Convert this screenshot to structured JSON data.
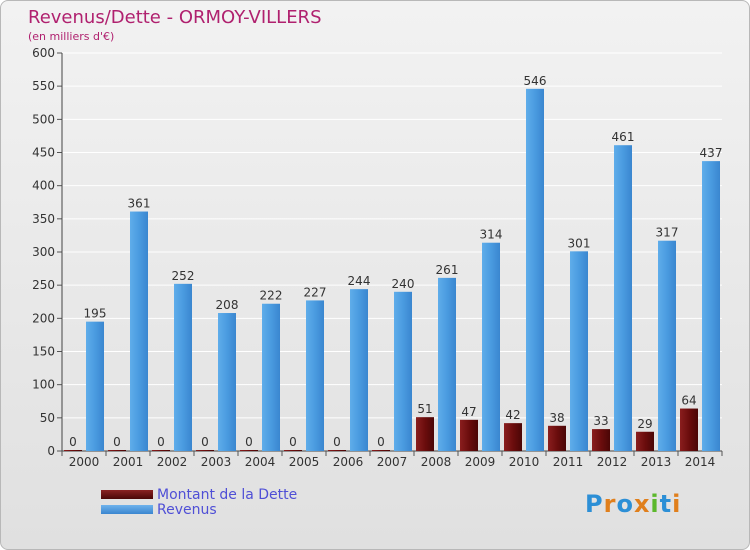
{
  "header": {
    "title": "Revenus/Dette - ORMOY-VILLERS",
    "subtitle": "(en milliers d'€)"
  },
  "legend": {
    "items": [
      {
        "label": "Montant de la Dette",
        "color": "#6b0d0d"
      },
      {
        "label": "Revenus",
        "color": "#4a9be0"
      }
    ]
  },
  "logo": {
    "text": "Proxiti",
    "colors": [
      "#2c8fd6",
      "#e07f1c",
      "#2c8fd6",
      "#e07f1c",
      "#5cb82c",
      "#2c8fd6",
      "#e07f1c"
    ]
  },
  "chart_data": {
    "type": "bar",
    "title": "Revenus/Dette - ORMOY-VILLERS",
    "subtitle": "(en milliers d'€)",
    "xlabel": "",
    "ylabel": "",
    "ylim": [
      0,
      600
    ],
    "yticks": [
      0,
      50,
      100,
      150,
      200,
      250,
      300,
      350,
      400,
      450,
      500,
      550,
      600
    ],
    "grid": true,
    "legend_position": "bottom-left",
    "categories": [
      "2000",
      "2001",
      "2002",
      "2003",
      "2004",
      "2005",
      "2006",
      "2007",
      "2008",
      "2009",
      "2010",
      "2011",
      "2012",
      "2013",
      "2014"
    ],
    "series": [
      {
        "name": "Montant de la Dette",
        "color": "#6b0d0d",
        "values": [
          0,
          0,
          0,
          0,
          0,
          0,
          0,
          0,
          51,
          47,
          42,
          38,
          33,
          29,
          64
        ]
      },
      {
        "name": "Revenus",
        "color": "#4a9be0",
        "values": [
          195,
          361,
          252,
          208,
          222,
          227,
          244,
          240,
          261,
          314,
          546,
          301,
          461,
          317,
          437
        ]
      }
    ]
  }
}
